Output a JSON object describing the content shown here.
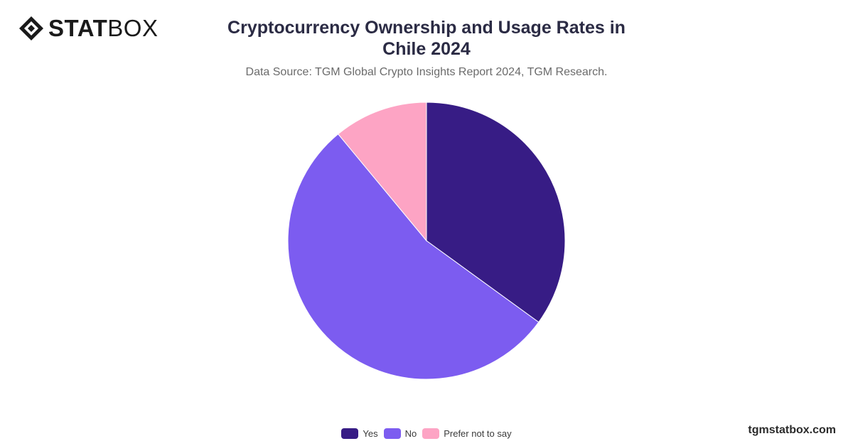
{
  "brand": {
    "logo_icon": "statbox-diamond-icon",
    "name_bold": "STAT",
    "name_light": "BOX",
    "site": "tgmstatbox.com"
  },
  "header": {
    "title": "Cryptocurrency Ownership and Usage Rates in Chile 2024",
    "subtitle": "Data Source: TGM Global Crypto Insights Report 2024, TGM Research."
  },
  "chart_data": {
    "type": "pie",
    "title": "Cryptocurrency Ownership and Usage Rates in Chile 2024",
    "labels": [
      "Yes",
      "No",
      "Prefer not to say"
    ],
    "values": [
      35.0,
      54.0,
      11.0
    ],
    "colors": [
      "#371c85",
      "#7c5cf0",
      "#fda4c4"
    ],
    "legend": "bottom"
  }
}
